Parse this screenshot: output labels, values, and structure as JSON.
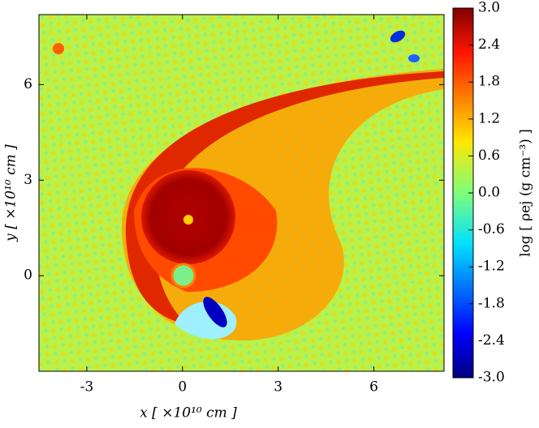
{
  "chart_data": {
    "type": "heatmap",
    "x_label": "x [ ×10¹⁰ cm ]",
    "y_label": "y [ ×10¹⁰ cm ]",
    "xlim": [
      -4.5,
      8.2
    ],
    "xticks": [
      -3,
      0,
      3,
      6
    ],
    "ylim": [
      -3,
      8.2
    ],
    "yticks": [
      0,
      3,
      6
    ],
    "colorbar": {
      "label": "log [ ρej (g cm⁻³) ]",
      "lim": [
        -3,
        3
      ],
      "colormap": "jet",
      "ticks": [
        {
          "value": 3,
          "label": "3.0"
        },
        2.4,
        1.8,
        1.2,
        0.6,
        {
          "value": 0,
          "label": "0.0"
        },
        -0.6,
        -1.2,
        -1.8,
        -2.4,
        {
          "value": -3,
          "label": "-3.0"
        }
      ]
    }
  }
}
